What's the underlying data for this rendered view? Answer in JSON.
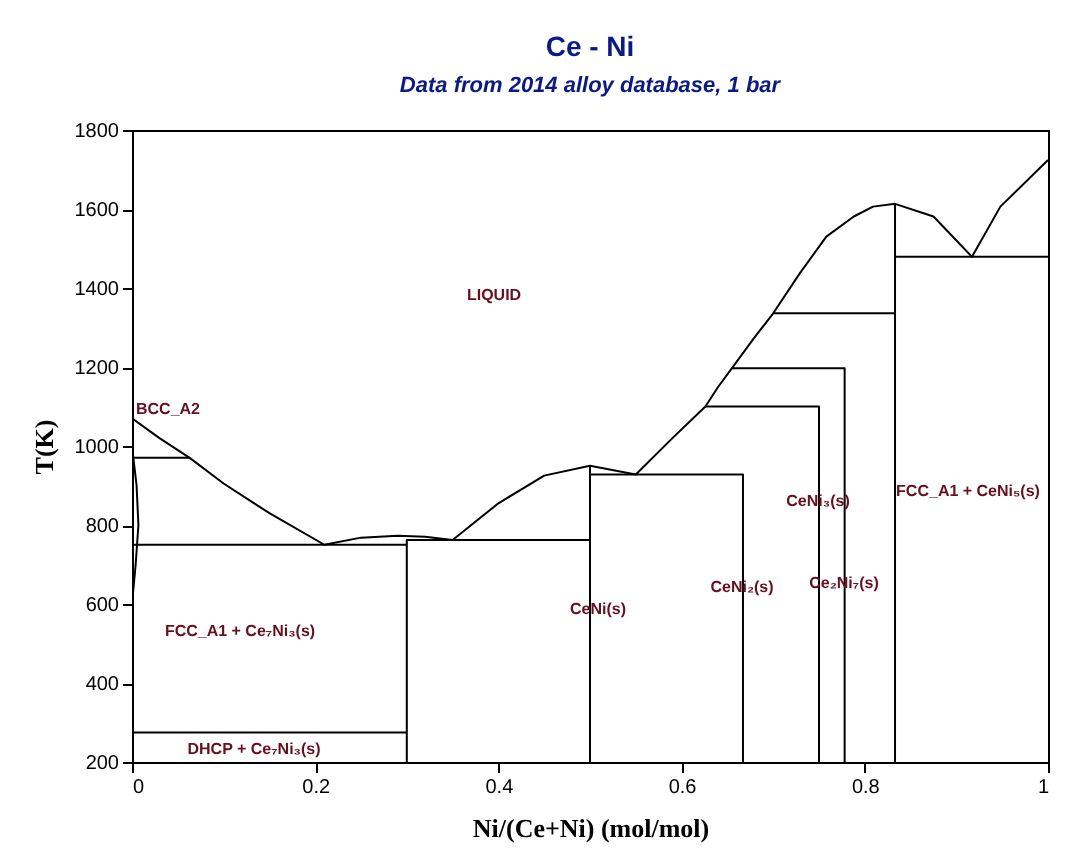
{
  "chart_data": {
    "type": "line",
    "title": "Ce - Ni",
    "subtitle": "Data from 2014 alloy database, 1 bar",
    "xlabel": "Ni/(Ce+Ni) (mol/mol)",
    "ylabel": "T(K)",
    "xlim": [
      0,
      1
    ],
    "ylim": [
      200,
      1800
    ],
    "xticks": [
      0,
      0.2,
      0.4,
      0.6,
      0.8,
      1
    ],
    "yticks": [
      200,
      400,
      600,
      800,
      1000,
      1200,
      1400,
      1600,
      1800
    ],
    "grid": false,
    "legend": false,
    "marker": "none",
    "line_style": "solid",
    "series": [
      {
        "color": "#000000",
        "x": [
          0,
          0.03,
          0.063,
          0.1,
          0.15,
          0.21,
          0.25,
          0.29,
          0.32,
          0.35,
          0.4,
          0.45,
          0.5,
          0.55,
          0.59,
          0.626,
          0.64,
          0.655,
          0.678,
          0.7,
          0.729,
          0.758,
          0.788,
          0.809,
          0.833,
          0.875,
          0.917,
          0.948,
          1
        ],
        "values": [
          1070,
          1020,
          970,
          905,
          830,
          750,
          768,
          773,
          770,
          762,
          855,
          925,
          950,
          928,
          1020,
          1100,
          1150,
          1197,
          1270,
          1336,
          1437,
          1530,
          1581,
          1606,
          1613,
          1581,
          1479,
          1606,
          1724
        ]
      },
      {
        "color": "#000000",
        "x": [
          0,
          0.005,
          0.007,
          0.004,
          0
        ],
        "values": [
          1000,
          900,
          800,
          700,
          600
        ]
      },
      {
        "color": "#000000",
        "x": [
          0,
          0.063
        ],
        "values": [
          970,
          970
        ]
      },
      {
        "color": "#000000",
        "x": [
          0,
          0.3
        ],
        "values": [
          750,
          750
        ]
      },
      {
        "color": "#000000",
        "x": [
          0,
          0.3
        ],
        "values": [
          275,
          275
        ]
      },
      {
        "color": "#000000",
        "x": [
          0.3,
          0.3,
          0.5
        ],
        "values": [
          200,
          762,
          762
        ]
      },
      {
        "color": "#000000",
        "x": [
          0.5,
          0.5
        ],
        "values": [
          200,
          950
        ]
      },
      {
        "color": "#000000",
        "x": [
          0.5,
          0.667,
          0.667
        ],
        "values": [
          928,
          928,
          200
        ]
      },
      {
        "color": "#000000",
        "x": [
          0.626,
          0.75,
          0.75
        ],
        "values": [
          1100,
          1100,
          200
        ]
      },
      {
        "color": "#000000",
        "x": [
          0.655,
          0.778,
          0.778
        ],
        "values": [
          1197,
          1197,
          200
        ]
      },
      {
        "color": "#000000",
        "x": [
          0.7,
          0.833
        ],
        "values": [
          1336,
          1336
        ]
      },
      {
        "color": "#000000",
        "x": [
          0.833,
          0.833
        ],
        "values": [
          200,
          1613
        ]
      },
      {
        "color": "#000000",
        "x": [
          0.833,
          1
        ],
        "values": [
          1479,
          1479
        ]
      }
    ],
    "annotations": [
      "LIQUID",
      "BCC_A2",
      "FCC_A1 + Ce₇Ni₃(s)",
      "DHCP + Ce₇Ni₃(s)",
      "CeNi(s)",
      "CeNi₂(s)",
      "CeNi₃(s)",
      "Ce₂Ni₇(s)",
      "FCC_A1 + CeNi₅(s)"
    ]
  }
}
